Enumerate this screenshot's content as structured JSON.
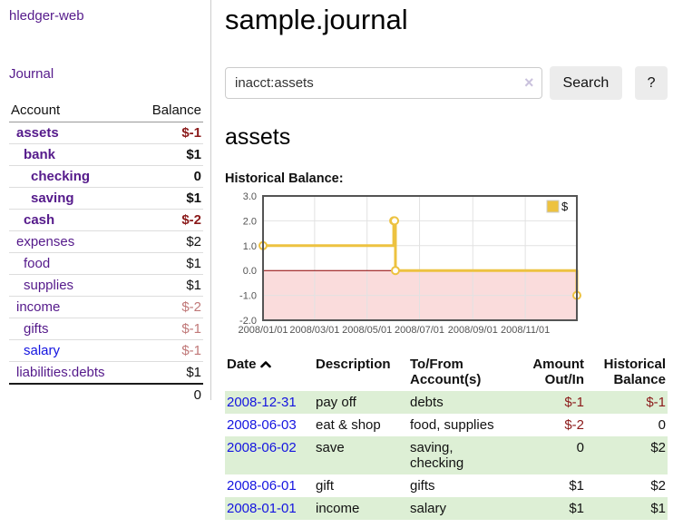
{
  "app": {
    "title": "hledger-web",
    "nav_journal_label": "Journal"
  },
  "sidebar": {
    "account_header": "Account",
    "balance_header": "Balance",
    "accounts": [
      {
        "name": "assets",
        "balance": "$-1"
      },
      {
        "name": "bank",
        "balance": "$1"
      },
      {
        "name": "checking",
        "balance": "0"
      },
      {
        "name": "saving",
        "balance": "$1"
      },
      {
        "name": "cash",
        "balance": "$-2"
      },
      {
        "name": "expenses",
        "balance": "$2"
      },
      {
        "name": "food",
        "balance": "$1"
      },
      {
        "name": "supplies",
        "balance": "$1"
      },
      {
        "name": "income",
        "balance": "$-2"
      },
      {
        "name": "gifts",
        "balance": "$-1"
      },
      {
        "name": "salary",
        "balance": "$-1"
      },
      {
        "name": "liabilities:debts",
        "balance": "$1"
      }
    ],
    "total": "0"
  },
  "header": {
    "title": "sample.journal"
  },
  "search": {
    "value": "inacct:assets",
    "clear_icon": "×",
    "search_button_label": "Search",
    "help_button_label": "?"
  },
  "account_page": {
    "heading": "assets",
    "chart_title": "Historical Balance:"
  },
  "chart_data": {
    "type": "line",
    "style": "step",
    "title": "Historical Balance:",
    "x_range": [
      "2008-01-01",
      "2008-12-31"
    ],
    "ylim": [
      -2,
      3
    ],
    "y_tick_labels": [
      "3.0",
      "2.0",
      "1.0",
      "0.0",
      "-1.0",
      "-2.0"
    ],
    "y_tick_values": [
      3,
      2,
      1,
      0,
      -1,
      -2
    ],
    "x_tick_labels": [
      "2008/01/01",
      "2008/03/01",
      "2008/05/01",
      "2008/07/01",
      "2008/09/01",
      "2008/11/01"
    ],
    "x_tick_dates": [
      "2008-01-01",
      "2008-03-01",
      "2008-05-01",
      "2008-07-01",
      "2008-09-01",
      "2008-11-01"
    ],
    "grid": true,
    "legend_position": "top-right",
    "series": [
      {
        "name": "$",
        "color": "#edc240",
        "points": [
          [
            "2008-01-01",
            1
          ],
          [
            "2008-06-01",
            2
          ],
          [
            "2008-06-02",
            2
          ],
          [
            "2008-06-03",
            0
          ],
          [
            "2008-12-31",
            -1
          ]
        ]
      }
    ],
    "negative_region_fill": "#fadcdc",
    "zero_line_color": "#8b0000",
    "grid_color": "#e2e2e2",
    "border_color": "#545454",
    "tick_label_color": "#545454"
  },
  "register_table": {
    "columns": {
      "date": "Date",
      "description": "Description",
      "accounts": "To/From Account(s)",
      "amount": "Amount Out/In",
      "balance": "Historical Balance"
    },
    "rows": [
      {
        "date": "2008-12-31",
        "description": "pay off",
        "accounts": "debts",
        "amount": "$-1",
        "balance": "$-1"
      },
      {
        "date": "2008-06-03",
        "description": "eat & shop",
        "accounts": "food, supplies",
        "amount": "$-2",
        "balance": "0"
      },
      {
        "date": "2008-06-02",
        "description": "save",
        "accounts": "saving,\nchecking",
        "amount": "0",
        "balance": "$2"
      },
      {
        "date": "2008-06-01",
        "description": "gift",
        "accounts": "gifts",
        "amount": "$1",
        "balance": "$2"
      },
      {
        "date": "2008-01-01",
        "description": "income",
        "accounts": "salary",
        "amount": "$1",
        "balance": "$1"
      }
    ]
  }
}
